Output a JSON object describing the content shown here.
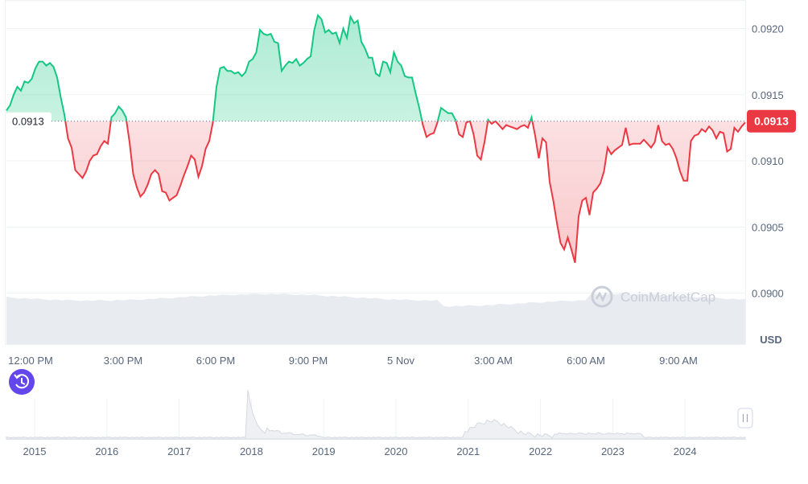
{
  "colors": {
    "up": "#16c784",
    "down": "#ea3943",
    "grid": "#eff2f5",
    "text": "#58667e",
    "volume": "#e8ebef",
    "history": "#6346ec"
  },
  "watermark": "CoinMarketCap",
  "unit_label": "USD",
  "history_button": {
    "icon": "history-icon"
  },
  "chart_data": {
    "type": "line",
    "y_axis_ticks": [
      "0.0920",
      "0.0915",
      "0.0910",
      "0.0905",
      "0.0900"
    ],
    "ylim": [
      0.09,
      0.0922
    ],
    "x_axis_ticks": [
      "12:00 PM",
      "3:00 PM",
      "6:00 PM",
      "9:00 PM",
      "5 Nov",
      "3:00 AM",
      "6:00 AM",
      "9:00 AM"
    ],
    "reference_price": 0.0913,
    "reference_label": "0.0913",
    "current_price": 0.0913,
    "current_label": "0.0913",
    "series": [
      {
        "values": [
          0.09138,
          0.09142,
          0.0915,
          0.09156,
          0.09153,
          0.0916,
          0.09159,
          0.09162,
          0.0917,
          0.09175,
          0.09175,
          0.09172,
          0.09174,
          0.09171,
          0.09163,
          0.09148,
          0.09135,
          0.09117,
          0.0911,
          0.09093,
          0.0909,
          0.09087,
          0.09092,
          0.091,
          0.09104,
          0.09105,
          0.09111,
          0.09115,
          0.09113,
          0.09133,
          0.09136,
          0.09141,
          0.09138,
          0.09133,
          0.09114,
          0.0909,
          0.0908,
          0.09073,
          0.09076,
          0.09082,
          0.0909,
          0.09093,
          0.0909,
          0.09077,
          0.09076,
          0.0907,
          0.09072,
          0.09074,
          0.09081,
          0.09089,
          0.09096,
          0.09104,
          0.09101,
          0.09088,
          0.09096,
          0.09109,
          0.09115,
          0.09129,
          0.09156,
          0.0917,
          0.09171,
          0.09168,
          0.09168,
          0.09166,
          0.09167,
          0.09164,
          0.09167,
          0.09175,
          0.09177,
          0.09182,
          0.09199,
          0.09196,
          0.09195,
          0.09196,
          0.0919,
          0.09189,
          0.09168,
          0.09172,
          0.09175,
          0.09174,
          0.09177,
          0.09172,
          0.09174,
          0.09177,
          0.09179,
          0.09199,
          0.0921,
          0.09207,
          0.09197,
          0.09199,
          0.09196,
          0.09197,
          0.09189,
          0.092,
          0.09193,
          0.09209,
          0.09204,
          0.09206,
          0.0919,
          0.09185,
          0.09178,
          0.09178,
          0.09166,
          0.09164,
          0.09175,
          0.09174,
          0.09167,
          0.09182,
          0.09175,
          0.09172,
          0.09164,
          0.09163,
          0.09163,
          0.09151,
          0.0914,
          0.09127,
          0.09118,
          0.0912,
          0.09121,
          0.09129,
          0.0914,
          0.09138,
          0.09136,
          0.09136,
          0.09131,
          0.0912,
          0.09118,
          0.09129,
          0.0913,
          0.0912,
          0.09104,
          0.09101,
          0.09114,
          0.09131,
          0.09128,
          0.0913,
          0.09127,
          0.09124,
          0.09127,
          0.09126,
          0.09125,
          0.09124,
          0.09126,
          0.09127,
          0.09125,
          0.09133,
          0.09119,
          0.09102,
          0.09117,
          0.09114,
          0.09084,
          0.0907,
          0.09053,
          0.09038,
          0.09033,
          0.09042,
          0.09033,
          0.09023,
          0.09058,
          0.0907,
          0.09072,
          0.09059,
          0.09076,
          0.09079,
          0.09083,
          0.09092,
          0.0911,
          0.09105,
          0.09108,
          0.0911,
          0.09112,
          0.09125,
          0.09112,
          0.09113,
          0.09113,
          0.09113,
          0.09116,
          0.09113,
          0.0911,
          0.09114,
          0.09127,
          0.09115,
          0.09112,
          0.09113,
          0.09109,
          0.09102,
          0.09092,
          0.09085,
          0.09085,
          0.09115,
          0.09119,
          0.0912,
          0.09124,
          0.09122,
          0.09126,
          0.09123,
          0.09117,
          0.09122,
          0.09121,
          0.09107,
          0.09109,
          0.09125,
          0.09122,
          0.09126,
          0.09129
        ]
      }
    ],
    "navigator": {
      "x_axis_ticks": [
        "2015",
        "2016",
        "2017",
        "2018",
        "2019",
        "2020",
        "2021",
        "2022",
        "2023",
        "2024"
      ]
    }
  }
}
